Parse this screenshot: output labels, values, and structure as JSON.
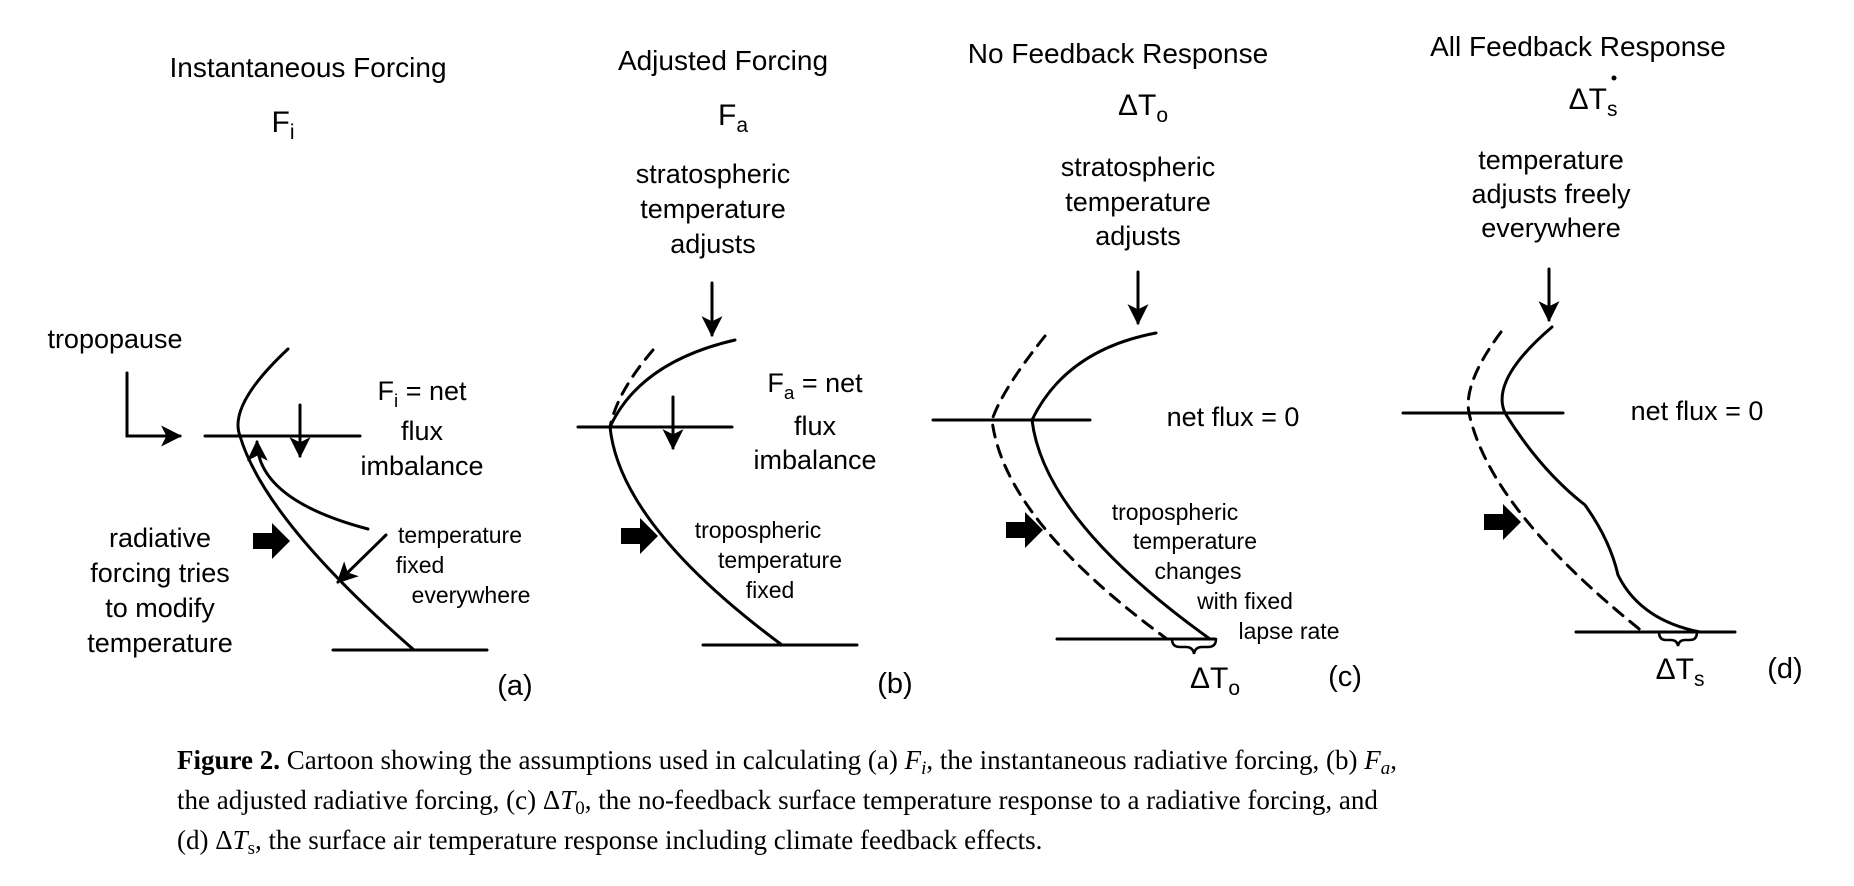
{
  "panels": {
    "a": {
      "title": "Instantaneous Forcing",
      "sym_main": "F",
      "sym_sub": "i",
      "left_label_lines": [
        "radiative",
        "forcing tries",
        "to modify",
        "temperature"
      ],
      "tropopause_label": "tropopause",
      "flux_sym_main": "F",
      "flux_sym_sub": "i",
      "flux_line1_rest": " = net",
      "flux_line2": "flux",
      "flux_line3": "imbalance",
      "fixed_lines": [
        "temperature",
        "fixed",
        "everywhere"
      ],
      "tag": "(a)"
    },
    "b": {
      "title": "Adjusted Forcing",
      "sym_main": "F",
      "sym_sub": "a",
      "adjust_lines": [
        "stratospheric",
        "temperature",
        "adjusts"
      ],
      "flux_sym_main": "F",
      "flux_sym_sub": "a",
      "flux_line1_rest": " = net",
      "flux_line2": "flux",
      "flux_line3": "imbalance",
      "fixed_lines": [
        "tropospheric",
        "temperature",
        "fixed"
      ],
      "tag": "(b)"
    },
    "c": {
      "title": "No Feedback Response",
      "sym_main": "ΔT",
      "sym_sub": "o",
      "adjust_lines": [
        "stratospheric",
        "temperature",
        "adjusts"
      ],
      "net_flux": "net flux = 0",
      "change_lines": [
        "tropospheric",
        "temperature",
        "changes",
        "with fixed",
        "lapse rate"
      ],
      "delta_main": "ΔT",
      "delta_sub": "o",
      "tag": "(c)"
    },
    "d": {
      "title": "All Feedback Response",
      "sym_main": "ΔT",
      "sym_sub": "s",
      "adjust_lines": [
        "temperature",
        "adjusts freely",
        "everywhere"
      ],
      "net_flux": "net flux = 0",
      "delta_main": "ΔT",
      "delta_sub": "s",
      "tag": "(d)"
    }
  },
  "caption": {
    "label": "Figure 2.",
    "line1_a": " Cartoon showing the assumptions used in calculating (a) ",
    "line1_fi_main": "F",
    "line1_fi_sub": "i",
    "line1_b": ", the instantaneous radiative forcing, (b) ",
    "line1_fa_main": "F",
    "line1_fa_sub": "a",
    "line1_c": ",",
    "line2_a": "the adjusted radiative forcing, (c) Δ",
    "line2_t_main": "T",
    "line2_t_sub": "0",
    "line2_b": ", the no-feedback surface temperature response to a radiative forcing, and",
    "line3_a": "(d) Δ",
    "line3_t_main": "T",
    "line3_t_sub": "s",
    "line3_b": ", the surface air temperature response including climate feedback effects."
  },
  "colors": {
    "ink": "#000000",
    "background": "#ffffff"
  }
}
